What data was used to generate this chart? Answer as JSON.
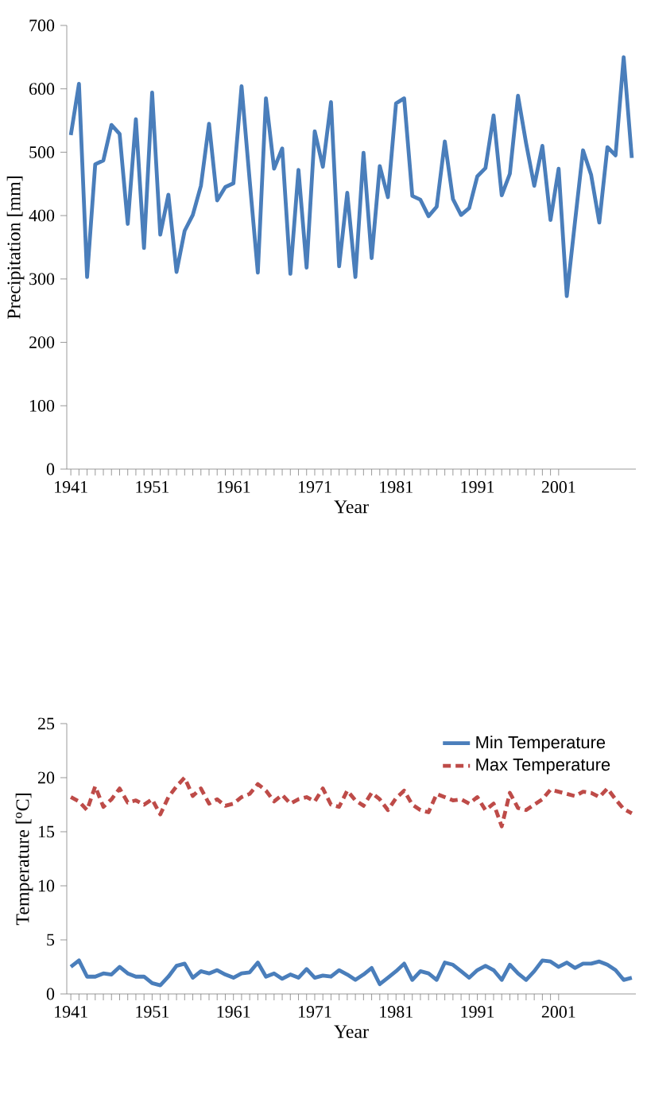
{
  "chart_data": [
    {
      "type": "line",
      "xlabel": "Year",
      "ylabel": "Precipitation [mm]",
      "x": [
        1941,
        1942,
        1943,
        1944,
        1945,
        1946,
        1947,
        1948,
        1949,
        1950,
        1951,
        1952,
        1953,
        1954,
        1955,
        1956,
        1957,
        1958,
        1959,
        1960,
        1961,
        1962,
        1963,
        1964,
        1965,
        1966,
        1967,
        1968,
        1969,
        1970,
        1971,
        1972,
        1973,
        1974,
        1975,
        1976,
        1977,
        1978,
        1979,
        1980,
        1981,
        1982,
        1983,
        1984,
        1985,
        1986,
        1987,
        1988,
        1989,
        1990,
        1991,
        1992,
        1993,
        1994,
        1995,
        1996,
        1997,
        1998,
        1999,
        2000,
        2001,
        2002,
        2003,
        2004,
        2005,
        2006,
        2007,
        2008,
        2009,
        2010
      ],
      "xlim": [
        1940.5,
        2010.5
      ],
      "xticks": [
        1941,
        1951,
        1961,
        1971,
        1981,
        1991,
        2001
      ],
      "ylim": [
        0,
        700
      ],
      "yticks": [
        0,
        100,
        200,
        300,
        400,
        500,
        600,
        700
      ],
      "color": "#4a7ebb",
      "line_style": "solid",
      "values": [
        527,
        608,
        303,
        481,
        487,
        543,
        529,
        387,
        552,
        349,
        594,
        370,
        433,
        311,
        376,
        401,
        447,
        545,
        424,
        445,
        451,
        604,
        455,
        310,
        585,
        474,
        506,
        308,
        472,
        318,
        533,
        477,
        579,
        320,
        436,
        303,
        499,
        333,
        478,
        429,
        577,
        585,
        431,
        425,
        399,
        414,
        517,
        426,
        401,
        412,
        462,
        475,
        558,
        432,
        466,
        589,
        514,
        447,
        510,
        393,
        474,
        273,
        389,
        503,
        464,
        389,
        508,
        495,
        650,
        491
      ]
    },
    {
      "type": "line",
      "xlabel": "Year",
      "ylabel": "Temperature [$^{o}$C]",
      "x": [
        1941,
        1942,
        1943,
        1944,
        1945,
        1946,
        1947,
        1948,
        1949,
        1950,
        1951,
        1952,
        1953,
        1954,
        1955,
        1956,
        1957,
        1958,
        1959,
        1960,
        1961,
        1962,
        1963,
        1964,
        1965,
        1966,
        1967,
        1968,
        1969,
        1970,
        1971,
        1972,
        1973,
        1974,
        1975,
        1976,
        1977,
        1978,
        1979,
        1980,
        1981,
        1982,
        1983,
        1984,
        1985,
        1986,
        1987,
        1988,
        1989,
        1990,
        1991,
        1992,
        1993,
        1994,
        1995,
        1996,
        1997,
        1998,
        1999,
        2000,
        2001,
        2002,
        2003,
        2004,
        2005,
        2006,
        2007,
        2008,
        2009,
        2010
      ],
      "xlim": [
        1940.5,
        2010.5
      ],
      "xticks": [
        1941,
        1951,
        1961,
        1971,
        1981,
        1991,
        2001
      ],
      "ylim": [
        0,
        25
      ],
      "yticks": [
        0,
        5,
        10,
        15,
        20,
        25
      ],
      "legend": "top right",
      "series": [
        {
          "name": "Min Temperature",
          "color": "#4a7ebb",
          "line_style": "solid",
          "values": [
            2.5,
            3.1,
            1.6,
            1.6,
            1.9,
            1.8,
            2.5,
            1.9,
            1.6,
            1.6,
            1.0,
            0.8,
            1.6,
            2.6,
            2.8,
            1.5,
            2.1,
            1.9,
            2.2,
            1.8,
            1.5,
            1.9,
            2.0,
            2.9,
            1.6,
            1.9,
            1.4,
            1.8,
            1.5,
            2.3,
            1.5,
            1.7,
            1.6,
            2.2,
            1.8,
            1.3,
            1.8,
            2.4,
            0.9,
            1.5,
            2.1,
            2.8,
            1.3,
            2.1,
            1.9,
            1.3,
            2.9,
            2.7,
            2.1,
            1.5,
            2.2,
            2.6,
            2.2,
            1.3,
            2.7,
            1.9,
            1.3,
            2.1,
            3.1,
            3.0,
            2.5,
            2.9,
            2.4,
            2.8,
            2.8,
            3.0,
            2.7,
            2.2,
            1.3,
            1.5
          ]
        },
        {
          "name": "Max Temperature",
          "color": "#be4b48",
          "line_style": "dashed",
          "values": [
            18.2,
            17.8,
            17.0,
            19.2,
            17.3,
            18.0,
            19.0,
            17.7,
            17.9,
            17.5,
            18.0,
            16.6,
            18.2,
            19.2,
            20.0,
            18.3,
            19.0,
            17.6,
            18.0,
            17.4,
            17.6,
            18.2,
            18.5,
            19.4,
            18.8,
            17.8,
            18.4,
            17.6,
            18.0,
            18.2,
            17.8,
            19.0,
            17.5,
            17.3,
            18.8,
            17.9,
            17.4,
            18.6,
            18.0,
            17.0,
            18.1,
            18.8,
            17.5,
            17.0,
            16.8,
            18.5,
            18.2,
            17.9,
            18.0,
            17.6,
            18.2,
            17.0,
            17.6,
            15.5,
            18.6,
            17.2,
            17.0,
            17.5,
            18.0,
            18.9,
            18.7,
            18.5,
            18.3,
            18.7,
            18.6,
            18.2,
            19.0,
            18.0,
            17.1,
            16.7
          ]
        }
      ]
    }
  ]
}
